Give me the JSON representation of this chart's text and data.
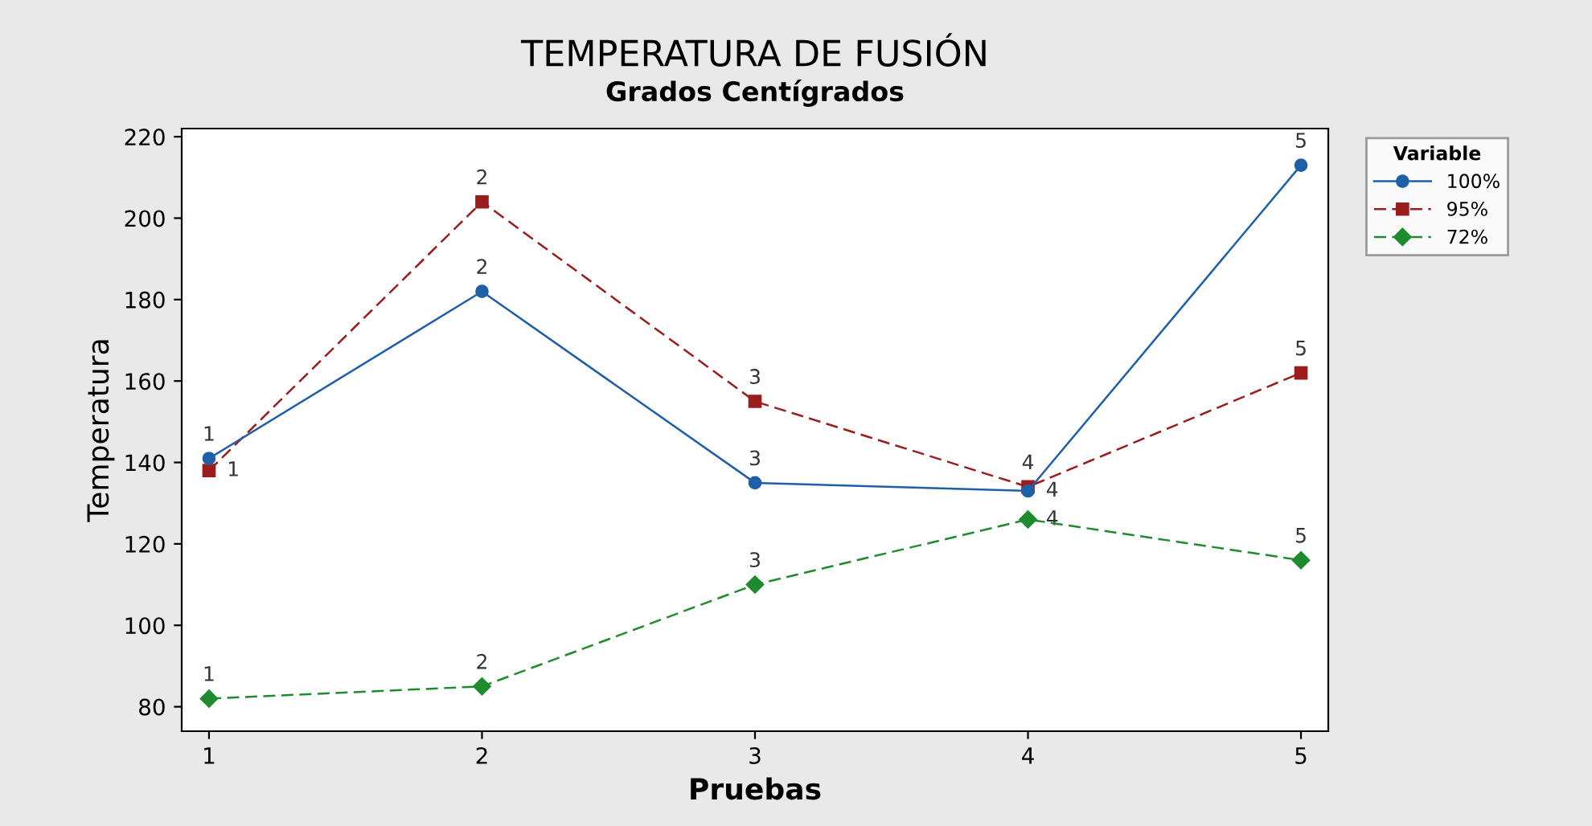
{
  "chart_data": {
    "type": "line",
    "title": "TEMPERATURA DE FUSIÓN",
    "subtitle": "Grados Centígrados",
    "xlabel": "Pruebas",
    "ylabel": "Temperatura",
    "legend_title": "Variable",
    "x": [
      1,
      2,
      3,
      4,
      5
    ],
    "xlim": [
      0.9,
      5.1
    ],
    "xticks": [
      1,
      2,
      3,
      4,
      5
    ],
    "ylim": [
      74,
      222
    ],
    "yticks": [
      80,
      100,
      120,
      140,
      160,
      180,
      200,
      220
    ],
    "grid": false,
    "legend": "right",
    "series": [
      {
        "name": "100%",
        "color": "#1f5fa8",
        "marker": "circle",
        "line_style": "solid",
        "values": [
          141,
          182,
          135,
          133,
          213
        ]
      },
      {
        "name": "95%",
        "color": "#9b1c1c",
        "marker": "square",
        "line_style": "dashed",
        "values": [
          138,
          204,
          155,
          134,
          162
        ]
      },
      {
        "name": "72%",
        "color": "#1e8c2e",
        "marker": "diamond",
        "line_style": "dashed",
        "values": [
          82,
          85,
          110,
          126,
          116
        ]
      }
    ],
    "annotations": [
      {
        "text": "1",
        "x": 1,
        "y": 141
      },
      {
        "text": "2",
        "x": 2,
        "y": 182
      },
      {
        "text": "3",
        "x": 3,
        "y": 135
      },
      {
        "text": "4",
        "x": 4,
        "y": 133
      },
      {
        "text": "5",
        "x": 5,
        "y": 213
      },
      {
        "text": "1",
        "x": 1,
        "y": 138
      },
      {
        "text": "2",
        "x": 2,
        "y": 204
      },
      {
        "text": "3",
        "x": 3,
        "y": 155
      },
      {
        "text": "4",
        "x": 4,
        "y": 134
      },
      {
        "text": "5",
        "x": 5,
        "y": 162
      },
      {
        "text": "1",
        "x": 1,
        "y": 82
      },
      {
        "text": "2",
        "x": 2,
        "y": 85
      },
      {
        "text": "3",
        "x": 3,
        "y": 110
      },
      {
        "text": "4",
        "x": 4,
        "y": 126
      },
      {
        "text": "5",
        "x": 5,
        "y": 116
      }
    ]
  }
}
